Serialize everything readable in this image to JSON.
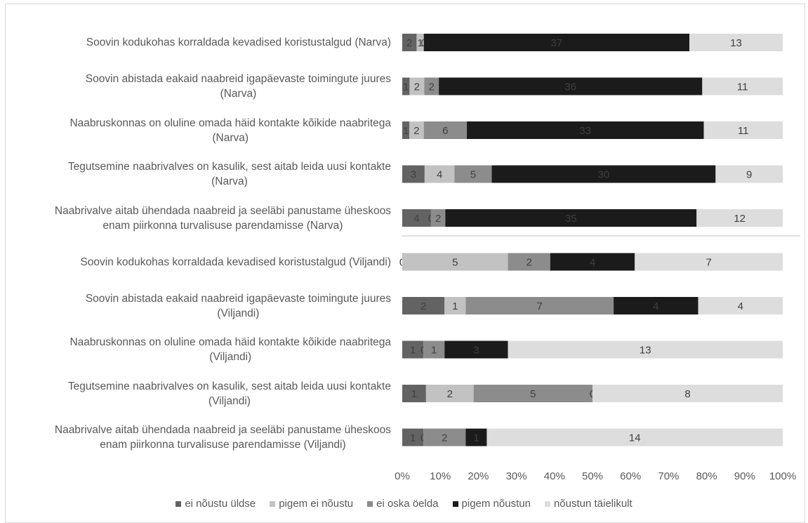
{
  "chart_data": {
    "type": "bar",
    "orientation": "horizontal",
    "stacked": "percent",
    "categories": [
      "Soovin kodukohas korraldada kevadised koristustalgud  (Narva)",
      "Soovin abistada eakaid naabreid igapäevaste toimingute juures (Narva)",
      "Naabruskonnas on oluline omada häid kontakte kõikide naabritega (Narva)",
      "Tegutsemine naabrivalves on kasulik, sest aitab leida uusi kontakte (Narva)",
      "Naabrivalve aitab ühendada naabreid ja seeläbi panustame üheskoos enam piirkonna turvalisuse parendamisse  (Narva)",
      "Soovin kodukohas korraldada kevadised koristustalgud  (Viljandi)",
      "Soovin abistada eakaid naabreid igapäevaste toimingute juures (Viljandi)",
      "Naabruskonnas on oluline omada häid kontakte kõikide naabritega (Viljandi)",
      "Tegutsemine naabrivalves on kasulik, sest aitab leida uusi kontakte (Viljandi)",
      "Naabrivalve aitab ühendada naabreid ja seeläbi panustame üheskoos enam piirkonna turvalisuse parendamisse  (Viljandi)"
    ],
    "category_lines": [
      [
        "Soovin kodukohas korraldada kevadised koristustalgud  (Narva)"
      ],
      [
        "Soovin abistada eakaid naabreid igapäevaste toimingute juures",
        "(Narva)"
      ],
      [
        "Naabruskonnas on oluline omada häid kontakte kõikide naabritega",
        "(Narva)"
      ],
      [
        "Tegutsemine naabrivalves on kasulik, sest aitab leida uusi kontakte",
        "(Narva)"
      ],
      [
        "Naabrivalve aitab ühendada naabreid ja seeläbi panustame üheskoos",
        "enam piirkonna turvalisuse parendamisse  (Narva)"
      ],
      [
        "Soovin kodukohas korraldada kevadised koristustalgud  (Viljandi)"
      ],
      [
        "Soovin abistada eakaid naabreid igapäevaste toimingute juures",
        "(Viljandi)"
      ],
      [
        "Naabruskonnas on oluline omada häid kontakte kõikide naabritega",
        "(Viljandi)"
      ],
      [
        "Tegutsemine naabrivalves on kasulik, sest aitab leida uusi kontakte",
        "(Viljandi)"
      ],
      [
        "Naabrivalve aitab ühendada naabreid ja seeläbi panustame üheskoos",
        "enam piirkonna turvalisuse parendamisse  (Viljandi)"
      ]
    ],
    "series": [
      {
        "name": "ei nõustu üldse",
        "color": "#636363",
        "label_color": "#404040",
        "values": [
          2,
          1,
          1,
          3,
          4,
          0,
          2,
          1,
          1,
          1
        ]
      },
      {
        "name": "pigem ei nõustu",
        "color": "#c2c2c2",
        "label_color": "#404040",
        "values": [
          1,
          2,
          2,
          4,
          0,
          5,
          1,
          0,
          2,
          0
        ]
      },
      {
        "name": "ei oska öelda",
        "color": "#8c8c8c",
        "label_color": "#404040",
        "values": [
          0,
          2,
          6,
          5,
          2,
          2,
          7,
          1,
          5,
          2
        ]
      },
      {
        "name": "pigem nõustun",
        "color": "#1b1b1b",
        "label_color": "#3f3f3f",
        "values": [
          37,
          36,
          33,
          30,
          35,
          4,
          4,
          3,
          0,
          1
        ]
      },
      {
        "name": "nõustun täielikult",
        "color": "#dddddd",
        "label_color": "#404040",
        "values": [
          13,
          11,
          11,
          9,
          12,
          7,
          4,
          13,
          8,
          14
        ]
      }
    ],
    "x_ticks": [
      "0%",
      "10%",
      "20%",
      "30%",
      "40%",
      "50%",
      "60%",
      "70%",
      "80%",
      "90%",
      "100%"
    ],
    "xlim": [
      0,
      100
    ],
    "legend_position": "bottom",
    "grid": false
  }
}
